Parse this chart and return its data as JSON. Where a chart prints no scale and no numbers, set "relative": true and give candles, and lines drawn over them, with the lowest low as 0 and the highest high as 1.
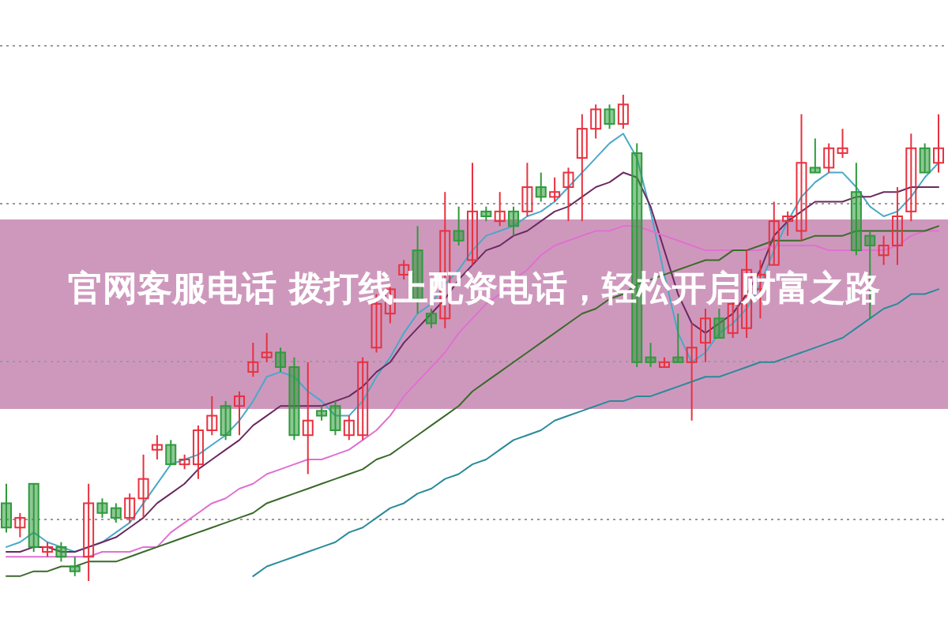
{
  "chart_data": {
    "type": "candlestick",
    "title": "官网客服电话 拨打线上配资电话，轻松开启财富之路",
    "relative": true,
    "grid": true,
    "categories": [
      null,
      null,
      null,
      null,
      null,
      null,
      null,
      null,
      null,
      null,
      null,
      null,
      null,
      null,
      null,
      null,
      null,
      null,
      null,
      null,
      null,
      null,
      null,
      null,
      null,
      null,
      null,
      null,
      null,
      null,
      null,
      null,
      null,
      null,
      null,
      null,
      null,
      null,
      null,
      null,
      null,
      null,
      null,
      null,
      null,
      null,
      null,
      null,
      null,
      null,
      null,
      null,
      null,
      null,
      null,
      null,
      null,
      null,
      null,
      null,
      null,
      null,
      null,
      null,
      null,
      null,
      null,
      null,
      null
    ],
    "series": [
      {
        "type": "line",
        "color": "#4aa8c8",
        "values": [
          0.07,
          0.08,
          0.1,
          0.08,
          0.07,
          0.06,
          0.07,
          0.08,
          0.1,
          0.12,
          0.16,
          0.2,
          0.24,
          0.25,
          0.26,
          0.28,
          0.3,
          0.33,
          0.37,
          0.42,
          0.43,
          0.42,
          0.39,
          0.37,
          0.34,
          0.34,
          0.37,
          0.42,
          0.46,
          0.51,
          0.55,
          0.57,
          0.61,
          0.64,
          0.68,
          0.71,
          0.72,
          0.73,
          0.75,
          0.76,
          0.78,
          0.81,
          0.84,
          0.87,
          0.9,
          0.92,
          0.87,
          0.76,
          0.63,
          0.51,
          0.45,
          0.47,
          0.51,
          0.53,
          0.56,
          0.61,
          0.68,
          0.74,
          0.79,
          0.82,
          0.84,
          0.84,
          0.81,
          0.77,
          0.75,
          0.76,
          0.79,
          0.83,
          0.86
        ]
      },
      {
        "type": "line",
        "color": "#6a2a60",
        "values": [
          0.06,
          0.06,
          0.07,
          0.07,
          0.06,
          0.06,
          0.07,
          0.08,
          0.09,
          0.11,
          0.13,
          0.16,
          0.18,
          0.2,
          0.23,
          0.25,
          0.27,
          0.29,
          0.32,
          0.34,
          0.36,
          0.36,
          0.36,
          0.36,
          0.37,
          0.38,
          0.4,
          0.43,
          0.45,
          0.49,
          0.52,
          0.55,
          0.58,
          0.62,
          0.65,
          0.68,
          0.69,
          0.71,
          0.72,
          0.74,
          0.76,
          0.77,
          0.79,
          0.81,
          0.82,
          0.84,
          0.83,
          0.77,
          0.68,
          0.59,
          0.53,
          0.51,
          0.53,
          0.55,
          0.59,
          0.64,
          0.71,
          0.74,
          0.76,
          0.78,
          0.78,
          0.78,
          0.79,
          0.79,
          0.8,
          0.8,
          0.81,
          0.81,
          0.81
        ]
      },
      {
        "type": "line",
        "color": "#e070d0",
        "values": [
          0.05,
          0.05,
          0.05,
          0.05,
          0.05,
          0.05,
          0.05,
          0.06,
          0.06,
          0.06,
          0.07,
          0.07,
          0.1,
          0.12,
          0.14,
          0.16,
          0.17,
          0.19,
          0.2,
          0.22,
          0.23,
          0.24,
          0.25,
          0.25,
          0.26,
          0.27,
          0.29,
          0.31,
          0.34,
          0.38,
          0.41,
          0.44,
          0.47,
          0.51,
          0.54,
          0.57,
          0.59,
          0.62,
          0.64,
          0.67,
          0.69,
          0.7,
          0.71,
          0.72,
          0.72,
          0.73,
          0.73,
          0.72,
          0.71,
          0.7,
          0.69,
          0.68,
          0.68,
          0.68,
          0.68,
          0.68,
          0.69,
          0.69,
          0.69,
          0.69,
          0.68,
          0.68,
          0.68,
          0.68,
          0.68,
          0.69,
          0.71,
          0.72,
          0.72
        ]
      },
      {
        "type": "line",
        "color": "#3a6a2a",
        "values": [
          0.01,
          0.01,
          0.02,
          0.02,
          0.03,
          0.03,
          0.04,
          0.04,
          0.04,
          0.05,
          0.06,
          0.07,
          0.08,
          0.09,
          0.1,
          0.11,
          0.12,
          0.13,
          0.14,
          0.16,
          0.17,
          0.18,
          0.19,
          0.2,
          0.21,
          0.22,
          0.23,
          0.25,
          0.26,
          0.28,
          0.3,
          0.32,
          0.34,
          0.36,
          0.39,
          0.41,
          0.43,
          0.45,
          0.47,
          0.49,
          0.51,
          0.53,
          0.55,
          0.56,
          0.58,
          0.59,
          0.61,
          0.62,
          0.63,
          0.64,
          0.65,
          0.66,
          0.66,
          0.68,
          0.68,
          0.69,
          0.7,
          0.7,
          0.7,
          0.71,
          0.71,
          0.71,
          0.72,
          0.72,
          0.72,
          0.72,
          0.72,
          0.72,
          0.73
        ]
      },
      {
        "type": "line",
        "color": "#2a8a9a",
        "values": [
          null,
          null,
          null,
          null,
          null,
          null,
          null,
          null,
          null,
          null,
          null,
          null,
          null,
          null,
          null,
          null,
          null,
          null,
          0.01,
          0.03,
          0.04,
          0.05,
          0.06,
          0.07,
          0.08,
          0.1,
          0.11,
          0.13,
          0.15,
          0.16,
          0.18,
          0.19,
          0.21,
          0.22,
          0.24,
          0.25,
          0.27,
          0.29,
          0.3,
          0.31,
          0.33,
          0.34,
          0.35,
          0.36,
          0.37,
          0.37,
          0.38,
          0.38,
          0.39,
          0.4,
          0.41,
          0.42,
          0.42,
          0.43,
          0.44,
          0.45,
          0.45,
          0.46,
          0.47,
          0.48,
          0.49,
          0.5,
          0.52,
          0.54,
          0.56,
          0.57,
          0.59,
          0.59,
          0.6
        ]
      },
      {
        "colors": [
          "#2f9a3c",
          "#e8313f",
          "#2f9a3c",
          "#e8313f",
          "#2f9a3c",
          "#2f9a3c",
          "#e8313f",
          "#2f9a3c",
          "#2f9a3c",
          "#e8313f",
          "#e8313f",
          "#e8313f",
          "#2f9a3c",
          "#e8313f",
          "#e8313f",
          "#e8313f",
          "#2f9a3c",
          "#e8313f",
          "#e8313f",
          "#e8313f",
          "#2f9a3c",
          "#2f9a3c",
          "#e8313f",
          "#2f9a3c",
          "#2f9a3c",
          "#e8313f",
          "#e8313f",
          "#e8313f",
          "#e8313f",
          "#e8313f",
          "#2f9a3c",
          "#2f9a3c",
          "#e8313f",
          "#2f9a3c",
          "#e8313f",
          "#2f9a3c",
          "#e8313f",
          "#2f9a3c",
          "#e8313f",
          "#2f9a3c",
          "#e8313f",
          "#e8313f",
          "#e8313f",
          "#e8313f",
          "#2f9a3c",
          "#e8313f",
          "#2f9a3c",
          "#2f9a3c",
          "#e8313f",
          "#2f9a3c",
          "#e8313f",
          "#e8313f",
          "#2f9a3c",
          "#e8313f",
          "#e8313f",
          "#e8313f",
          "#e8313f",
          "#e8313f",
          "#e8313f",
          "#2f9a3c",
          "#e8313f",
          "#e8313f",
          "#2f9a3c",
          "#2f9a3c",
          "#e8313f",
          "#e8313f",
          "#e8313f",
          "#2f9a3c",
          "#e8313f"
        ],
        "ohlc": [
          [
            0.16,
            0.2,
            0.1,
            0.11
          ],
          [
            0.11,
            0.14,
            0.09,
            0.13
          ],
          [
            0.2,
            0.2,
            0.06,
            0.07
          ],
          [
            0.06,
            0.08,
            0.05,
            0.07
          ],
          [
            0.07,
            0.08,
            0.04,
            0.05
          ],
          [
            0.03,
            0.05,
            0.01,
            0.02
          ],
          [
            0.05,
            0.2,
            0.0,
            0.16
          ],
          [
            0.16,
            0.17,
            0.13,
            0.14
          ],
          [
            0.15,
            0.16,
            0.12,
            0.13
          ],
          [
            0.13,
            0.18,
            0.12,
            0.17
          ],
          [
            0.17,
            0.26,
            0.13,
            0.21
          ],
          [
            0.27,
            0.3,
            0.25,
            0.28
          ],
          [
            0.28,
            0.29,
            0.24,
            0.24
          ],
          [
            0.24,
            0.26,
            0.23,
            0.25
          ],
          [
            0.24,
            0.32,
            0.21,
            0.31
          ],
          [
            0.31,
            0.38,
            0.3,
            0.34
          ],
          [
            0.36,
            0.37,
            0.29,
            0.3
          ],
          [
            0.36,
            0.39,
            0.3,
            0.38
          ],
          [
            0.43,
            0.49,
            0.42,
            0.45
          ],
          [
            0.46,
            0.51,
            0.45,
            0.47
          ],
          [
            0.47,
            0.48,
            0.43,
            0.44
          ],
          [
            0.44,
            0.46,
            0.29,
            0.3
          ],
          [
            0.3,
            0.45,
            0.22,
            0.33
          ],
          [
            0.35,
            0.36,
            0.33,
            0.34
          ],
          [
            0.36,
            0.37,
            0.3,
            0.31
          ],
          [
            0.3,
            0.34,
            0.29,
            0.33
          ],
          [
            0.3,
            0.46,
            0.29,
            0.45
          ],
          [
            0.48,
            0.59,
            0.47,
            0.57
          ],
          [
            0.55,
            0.61,
            0.53,
            0.6
          ],
          [
            0.63,
            0.66,
            0.62,
            0.65
          ],
          [
            0.68,
            0.73,
            0.55,
            0.58
          ],
          [
            0.55,
            0.56,
            0.52,
            0.53
          ],
          [
            0.54,
            0.8,
            0.52,
            0.72
          ],
          [
            0.72,
            0.77,
            0.69,
            0.7
          ],
          [
            0.66,
            0.86,
            0.65,
            0.76
          ],
          [
            0.76,
            0.77,
            0.74,
            0.75
          ],
          [
            0.74,
            0.8,
            0.73,
            0.76
          ],
          [
            0.76,
            0.77,
            0.71,
            0.73
          ],
          [
            0.76,
            0.86,
            0.75,
            0.81
          ],
          [
            0.81,
            0.84,
            0.78,
            0.79
          ],
          [
            0.79,
            0.83,
            0.78,
            0.8
          ],
          [
            0.81,
            0.85,
            0.74,
            0.84
          ],
          [
            0.87,
            0.96,
            0.74,
            0.93
          ],
          [
            0.93,
            0.98,
            0.91,
            0.97
          ],
          [
            0.97,
            0.98,
            0.93,
            0.94
          ],
          [
            0.94,
            1.0,
            0.93,
            0.98
          ],
          [
            0.88,
            0.9,
            0.44,
            0.45
          ],
          [
            0.46,
            0.49,
            0.44,
            0.45
          ],
          [
            0.44,
            0.46,
            0.44,
            0.45
          ],
          [
            0.46,
            0.55,
            0.45,
            0.45
          ],
          [
            0.45,
            0.53,
            0.33,
            0.48
          ],
          [
            0.49,
            0.56,
            0.45,
            0.54
          ],
          [
            0.54,
            0.56,
            0.5,
            0.5
          ],
          [
            0.51,
            0.58,
            0.5,
            0.57
          ],
          [
            0.52,
            0.68,
            0.5,
            0.64
          ],
          [
            0.6,
            0.66,
            0.54,
            0.63
          ],
          [
            0.65,
            0.78,
            0.65,
            0.74
          ],
          [
            0.74,
            0.76,
            0.71,
            0.75
          ],
          [
            0.72,
            0.96,
            0.7,
            0.86
          ],
          [
            0.85,
            0.91,
            0.84,
            0.84
          ],
          [
            0.85,
            0.9,
            0.84,
            0.89
          ],
          [
            0.88,
            0.93,
            0.87,
            0.89
          ],
          [
            0.8,
            0.86,
            0.67,
            0.68
          ],
          [
            0.71,
            0.72,
            0.54,
            0.69
          ],
          [
            0.67,
            0.71,
            0.65,
            0.69
          ],
          [
            0.69,
            0.81,
            0.65,
            0.75
          ],
          [
            0.76,
            0.92,
            0.74,
            0.89
          ],
          [
            0.89,
            0.9,
            0.84,
            0.84
          ],
          [
            0.86,
            0.96,
            0.84,
            0.89
          ]
        ]
      }
    ]
  }
}
